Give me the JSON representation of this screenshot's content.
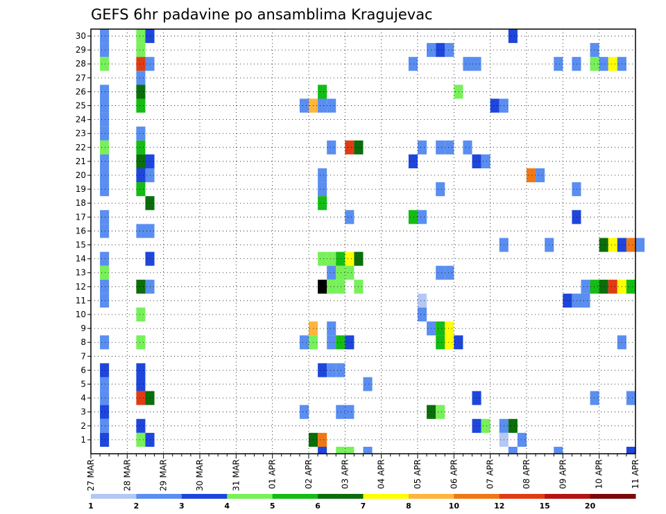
{
  "chart_data": {
    "type": "heatmap",
    "title": "GEFS 6hr padavine po ansamblima Kragujevac",
    "xlabel": "",
    "ylabel": "",
    "x_tick_labels": [
      "27 MAR",
      "28 MAR",
      "29 MAR",
      "30 MAR",
      "31 MAR",
      "01 APR",
      "02 APR",
      "03 APR",
      "04 APR",
      "05 APR",
      "06 APR",
      "07 APR",
      "08 APR",
      "09 APR",
      "10 APR",
      "11 APR"
    ],
    "x_step_hours": 6,
    "ylim": [
      0,
      30
    ],
    "y_ticks": [
      1,
      2,
      3,
      4,
      5,
      6,
      7,
      8,
      9,
      10,
      11,
      12,
      13,
      14,
      15,
      16,
      17,
      18,
      19,
      20,
      21,
      22,
      23,
      24,
      25,
      26,
      27,
      28,
      29,
      30
    ],
    "grid": true,
    "legend": {
      "placement": "bottom",
      "labels": [
        "1",
        "2",
        "3",
        "4",
        "5",
        "6",
        "7",
        "8",
        "10",
        "12",
        "15",
        "20"
      ],
      "colors": [
        "#b4c8f5",
        "#5a8ef0",
        "#1e46dc",
        "#78f05a",
        "#14bc14",
        "#0a6e0a",
        "#ffff00",
        "#ffb43c",
        "#f07814",
        "#e03c14",
        "#b41414",
        "#780a0a"
      ]
    },
    "cells": [
      [
        1,
        30,
        1
      ],
      [
        1,
        29,
        1
      ],
      [
        1,
        28,
        3
      ],
      [
        1,
        26,
        1
      ],
      [
        1,
        25,
        1
      ],
      [
        1,
        24,
        1
      ],
      [
        1,
        23,
        1
      ],
      [
        1,
        22,
        3
      ],
      [
        1,
        21,
        1
      ],
      [
        1,
        20,
        1
      ],
      [
        1,
        19,
        1
      ],
      [
        1,
        17,
        1
      ],
      [
        1,
        16,
        1
      ],
      [
        1,
        14,
        1
      ],
      [
        1,
        13,
        3
      ],
      [
        1,
        12,
        1
      ],
      [
        1,
        11,
        1
      ],
      [
        1,
        8,
        1
      ],
      [
        1,
        6,
        2
      ],
      [
        1,
        5,
        1
      ],
      [
        1,
        4,
        1
      ],
      [
        1,
        3,
        2
      ],
      [
        1,
        2,
        1
      ],
      [
        1,
        1,
        2
      ],
      [
        5,
        30,
        3
      ],
      [
        5,
        29,
        3
      ],
      [
        5,
        28,
        9
      ],
      [
        5,
        27,
        1
      ],
      [
        5,
        26,
        5
      ],
      [
        5,
        25,
        4
      ],
      [
        5,
        23,
        1
      ],
      [
        5,
        22,
        4
      ],
      [
        5,
        21,
        5
      ],
      [
        5,
        20,
        2
      ],
      [
        5,
        19,
        4
      ],
      [
        5,
        16,
        1
      ],
      [
        5,
        12,
        5
      ],
      [
        5,
        10,
        3
      ],
      [
        5,
        8,
        3
      ],
      [
        5,
        6,
        2
      ],
      [
        5,
        5,
        2
      ],
      [
        5,
        4,
        9
      ],
      [
        5,
        2,
        2
      ],
      [
        5,
        1,
        3
      ],
      [
        6,
        30,
        2
      ],
      [
        6,
        28,
        1
      ],
      [
        6,
        21,
        2
      ],
      [
        6,
        20,
        1
      ],
      [
        6,
        18,
        5
      ],
      [
        6,
        16,
        1
      ],
      [
        6,
        14,
        2
      ],
      [
        6,
        12,
        1
      ],
      [
        6,
        4,
        5
      ],
      [
        6,
        1,
        2
      ],
      [
        23,
        25,
        1
      ],
      [
        23,
        8,
        1
      ],
      [
        23,
        3,
        1
      ],
      [
        24,
        25,
        7
      ],
      [
        24,
        9,
        7
      ],
      [
        24,
        8,
        3
      ],
      [
        24,
        1,
        5
      ],
      [
        25,
        26,
        4
      ],
      [
        25,
        25,
        1
      ],
      [
        25,
        20,
        1
      ],
      [
        25,
        19,
        1
      ],
      [
        25,
        18,
        4
      ],
      [
        25,
        14,
        3
      ],
      [
        25,
        12,
        12
      ],
      [
        25,
        6,
        2
      ],
      [
        25,
        1,
        8
      ],
      [
        25,
        0,
        2
      ],
      [
        26,
        25,
        1
      ],
      [
        26,
        22,
        1
      ],
      [
        26,
        14,
        3
      ],
      [
        26,
        13,
        1
      ],
      [
        26,
        12,
        3
      ],
      [
        26,
        9,
        1
      ],
      [
        26,
        8,
        1
      ],
      [
        26,
        6,
        1
      ],
      [
        27,
        14,
        4
      ],
      [
        27,
        13,
        3
      ],
      [
        27,
        12,
        3
      ],
      [
        27,
        8,
        4
      ],
      [
        27,
        6,
        1
      ],
      [
        27,
        3,
        1
      ],
      [
        27,
        0,
        3
      ],
      [
        28,
        22,
        9
      ],
      [
        28,
        17,
        1
      ],
      [
        28,
        14,
        6
      ],
      [
        28,
        13,
        3
      ],
      [
        28,
        8,
        2
      ],
      [
        28,
        3,
        1
      ],
      [
        28,
        0,
        3
      ],
      [
        29,
        22,
        5
      ],
      [
        29,
        14,
        5
      ],
      [
        29,
        12,
        3
      ],
      [
        30,
        5,
        1
      ],
      [
        30,
        0,
        1
      ],
      [
        35,
        28,
        1
      ],
      [
        35,
        21,
        2
      ],
      [
        35,
        17,
        4
      ],
      [
        36,
        22,
        1
      ],
      [
        36,
        17,
        1
      ],
      [
        36,
        10,
        1
      ],
      [
        36,
        11,
        0
      ],
      [
        37,
        29,
        1
      ],
      [
        37,
        9,
        1
      ],
      [
        37,
        3,
        5
      ],
      [
        38,
        29,
        2
      ],
      [
        38,
        19,
        1
      ],
      [
        38,
        22,
        1
      ],
      [
        38,
        13,
        1
      ],
      [
        38,
        9,
        4
      ],
      [
        38,
        8,
        4
      ],
      [
        38,
        3,
        3
      ],
      [
        39,
        29,
        1
      ],
      [
        39,
        22,
        1
      ],
      [
        39,
        13,
        1
      ],
      [
        39,
        9,
        6
      ],
      [
        39,
        8,
        6
      ],
      [
        40,
        26,
        3
      ],
      [
        40,
        8,
        2
      ],
      [
        41,
        28,
        1
      ],
      [
        41,
        22,
        1
      ],
      [
        42,
        28,
        1
      ],
      [
        42,
        21,
        2
      ],
      [
        42,
        4,
        2
      ],
      [
        42,
        2,
        2
      ],
      [
        43,
        21,
        1
      ],
      [
        43,
        2,
        3
      ],
      [
        44,
        25,
        2
      ],
      [
        45,
        25,
        1
      ],
      [
        45,
        15,
        1
      ],
      [
        45,
        2,
        1
      ],
      [
        45,
        1,
        0
      ],
      [
        46,
        30,
        2
      ],
      [
        46,
        2,
        5
      ],
      [
        46,
        0,
        1
      ],
      [
        47,
        1,
        1
      ],
      [
        48,
        20,
        8
      ],
      [
        49,
        20,
        1
      ],
      [
        50,
        15,
        1
      ],
      [
        51,
        28,
        1
      ],
      [
        51,
        0,
        1
      ],
      [
        52,
        11,
        2
      ],
      [
        53,
        28,
        1
      ],
      [
        53,
        19,
        1
      ],
      [
        53,
        17,
        2
      ],
      [
        53,
        11,
        1
      ],
      [
        54,
        12,
        1
      ],
      [
        54,
        11,
        1
      ],
      [
        55,
        29,
        1
      ],
      [
        55,
        28,
        3
      ],
      [
        55,
        12,
        4
      ],
      [
        55,
        4,
        1
      ],
      [
        56,
        28,
        1
      ],
      [
        56,
        15,
        5
      ],
      [
        56,
        12,
        5
      ],
      [
        57,
        28,
        6
      ],
      [
        57,
        15,
        6
      ],
      [
        57,
        12,
        9
      ],
      [
        58,
        28,
        1
      ],
      [
        58,
        15,
        2
      ],
      [
        58,
        12,
        6
      ],
      [
        58,
        8,
        1
      ],
      [
        59,
        15,
        8
      ],
      [
        59,
        12,
        4
      ],
      [
        59,
        4,
        1
      ],
      [
        59,
        0,
        2
      ],
      [
        60,
        15,
        1
      ]
    ]
  }
}
